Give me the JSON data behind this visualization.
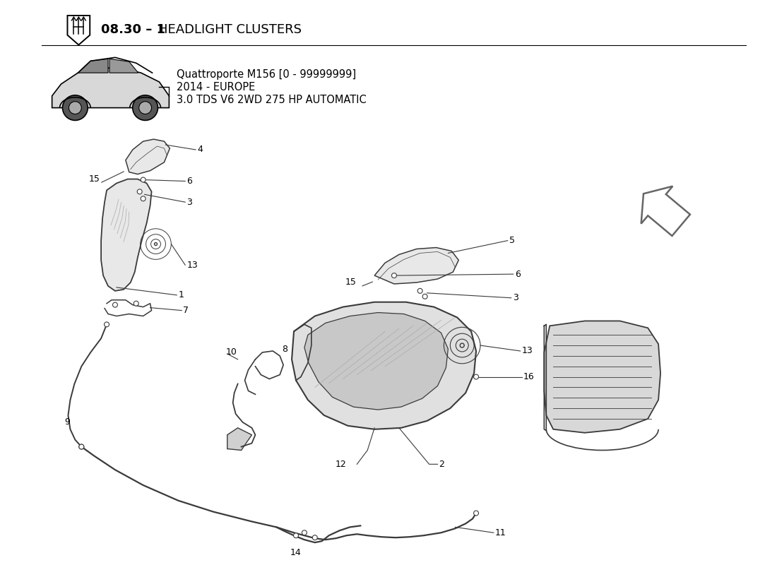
{
  "title_bold": "08.30 - 1 ",
  "title_normal": "HEADLIGHT CLUSTERS",
  "subtitle_line1": "Quattroporte M156 [0 - 99999999]",
  "subtitle_line2": "2014 - EUROPE",
  "subtitle_line3": "3.0 TDS V6 2WD 275 HP AUTOMATIC",
  "bg_color": "#ffffff",
  "line_color": "#3a3a3a",
  "light_fill": "#e8e8e8",
  "medium_fill": "#d0d0d0"
}
